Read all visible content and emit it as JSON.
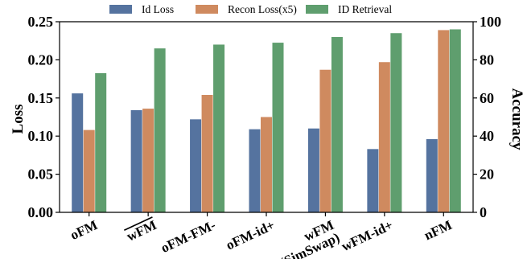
{
  "chart_data": {
    "type": "bar",
    "categories": [
      "oFM",
      "wFM",
      "oFM-FM-",
      "oFM-id+",
      "wFM\n(SimSwap)",
      "wFM-id+",
      "nFM"
    ],
    "series": [
      {
        "name": "Id Loss",
        "axis": "left",
        "color": "#55739f",
        "values": [
          0.156,
          0.134,
          0.122,
          0.109,
          0.11,
          0.083,
          0.096
        ]
      },
      {
        "name": "Recon Loss(x5)",
        "axis": "left",
        "color": "#cf8a5f",
        "values": [
          0.108,
          0.136,
          0.154,
          0.125,
          0.187,
          0.197,
          0.239
        ]
      },
      {
        "name": "ID Retrieval",
        "axis": "right",
        "color": "#5f9e6e",
        "values": [
          73,
          86,
          88,
          89,
          92,
          94,
          96
        ]
      }
    ],
    "ylabel_left": "Loss",
    "ylabel_right": "Accuracy",
    "ylim_left": [
      0,
      0.25
    ],
    "ylim_right": [
      0,
      100
    ],
    "yticks_left": [
      "0.00",
      "0.05",
      "0.10",
      "0.15",
      "0.20",
      "0.25"
    ],
    "yticks_right": [
      "0",
      "20",
      "40",
      "60",
      "80",
      "100"
    ],
    "overlined_categories": [
      "wFM"
    ],
    "legend_position": "top-center",
    "grid": false
  }
}
